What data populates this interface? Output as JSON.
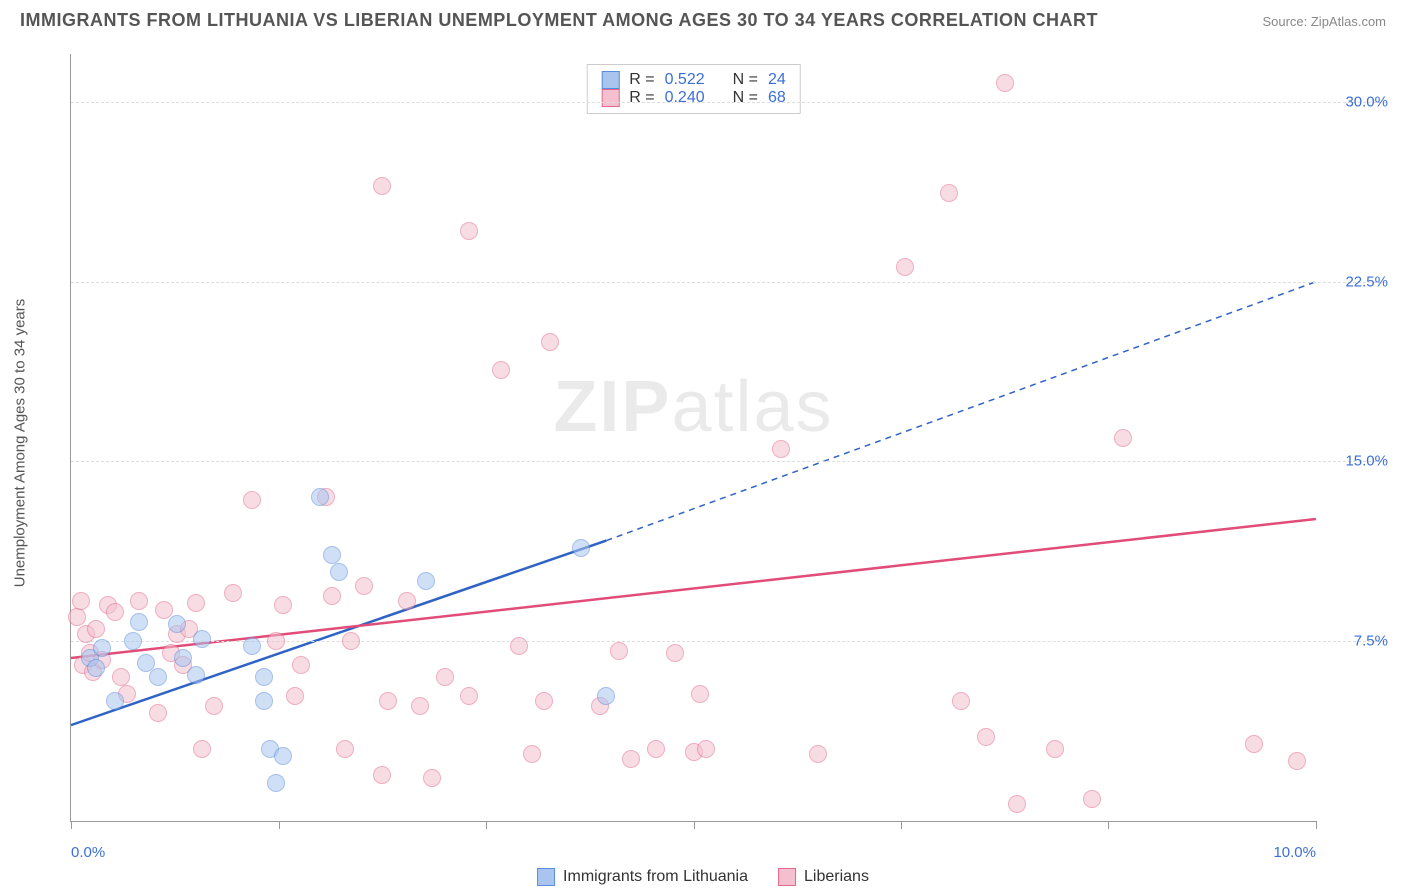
{
  "title": "IMMIGRANTS FROM LITHUANIA VS LIBERIAN UNEMPLOYMENT AMONG AGES 30 TO 34 YEARS CORRELATION CHART",
  "source_label": "Source: ZipAtlas.com",
  "ylabel": "Unemployment Among Ages 30 to 34 years",
  "watermark_bold": "ZIP",
  "watermark_light": "atlas",
  "chart": {
    "type": "scatter",
    "background_color": "#ffffff",
    "grid_color": "#dddddd",
    "axis_color": "#999999",
    "tick_label_color": "#3b6fd8",
    "tick_fontsize": 15,
    "xlim": [
      0,
      10
    ],
    "ylim": [
      0,
      32
    ],
    "xtick_labels": [
      "0.0%",
      "10.0%"
    ],
    "xtick_positions": [
      0,
      10
    ],
    "xtick_minor": [
      0,
      1.67,
      3.33,
      5.0,
      6.67,
      8.33,
      10.0
    ],
    "ytick_labels": [
      "7.5%",
      "15.0%",
      "22.5%",
      "30.0%"
    ],
    "ytick_positions": [
      7.5,
      15.0,
      22.5,
      30.0
    ],
    "marker_radius": 9,
    "marker_opacity": 0.55,
    "series": [
      {
        "name": "Immigrants from Lithuania",
        "fill": "#a9c5ef",
        "stroke": "#5a8ddb",
        "line_color": "#2f63c4",
        "R": "0.522",
        "N": "24",
        "trend": {
          "x1": 0,
          "y1": 4.0,
          "x2": 4.3,
          "y2": 11.7,
          "x3": 10.0,
          "y3": 22.5
        },
        "points": [
          [
            0.15,
            6.8
          ],
          [
            0.2,
            6.4
          ],
          [
            0.25,
            7.2
          ],
          [
            0.35,
            5.0
          ],
          [
            0.5,
            7.5
          ],
          [
            0.55,
            8.3
          ],
          [
            0.6,
            6.6
          ],
          [
            0.7,
            6.0
          ],
          [
            0.85,
            8.2
          ],
          [
            0.9,
            6.8
          ],
          [
            1.0,
            6.1
          ],
          [
            1.05,
            7.6
          ],
          [
            1.45,
            7.3
          ],
          [
            1.55,
            6.0
          ],
          [
            1.55,
            5.0
          ],
          [
            1.6,
            3.0
          ],
          [
            1.65,
            1.6
          ],
          [
            1.7,
            2.7
          ],
          [
            2.0,
            13.5
          ],
          [
            2.1,
            11.1
          ],
          [
            2.15,
            10.4
          ],
          [
            2.85,
            10.0
          ],
          [
            4.1,
            11.4
          ],
          [
            4.3,
            5.2
          ]
        ]
      },
      {
        "name": "Liberians",
        "fill": "#f4c0cf",
        "stroke": "#e16b8e",
        "line_color": "#e14d78",
        "R": "0.240",
        "N": "68",
        "trend": {
          "x1": 0,
          "y1": 6.8,
          "x2": 10.0,
          "y2": 12.6
        },
        "points": [
          [
            0.05,
            8.5
          ],
          [
            0.08,
            9.2
          ],
          [
            0.1,
            6.5
          ],
          [
            0.12,
            7.8
          ],
          [
            0.15,
            7.0
          ],
          [
            0.18,
            6.2
          ],
          [
            0.2,
            8.0
          ],
          [
            0.25,
            6.7
          ],
          [
            0.3,
            9.0
          ],
          [
            0.35,
            8.7
          ],
          [
            0.4,
            6.0
          ],
          [
            0.45,
            5.3
          ],
          [
            0.55,
            9.2
          ],
          [
            0.7,
            4.5
          ],
          [
            0.75,
            8.8
          ],
          [
            0.8,
            7.0
          ],
          [
            0.85,
            7.8
          ],
          [
            0.9,
            6.5
          ],
          [
            0.95,
            8.0
          ],
          [
            1.0,
            9.1
          ],
          [
            1.05,
            3.0
          ],
          [
            1.15,
            4.8
          ],
          [
            1.3,
            9.5
          ],
          [
            1.45,
            13.4
          ],
          [
            1.65,
            7.5
          ],
          [
            1.7,
            9.0
          ],
          [
            1.8,
            5.2
          ],
          [
            1.85,
            6.5
          ],
          [
            2.05,
            13.5
          ],
          [
            2.1,
            9.4
          ],
          [
            2.2,
            3.0
          ],
          [
            2.25,
            7.5
          ],
          [
            2.35,
            9.8
          ],
          [
            2.5,
            1.9
          ],
          [
            2.5,
            26.5
          ],
          [
            2.55,
            5.0
          ],
          [
            2.7,
            9.2
          ],
          [
            2.8,
            4.8
          ],
          [
            2.9,
            1.8
          ],
          [
            3.0,
            6.0
          ],
          [
            3.2,
            5.2
          ],
          [
            3.2,
            24.6
          ],
          [
            3.45,
            18.8
          ],
          [
            3.6,
            7.3
          ],
          [
            3.7,
            2.8
          ],
          [
            3.8,
            5.0
          ],
          [
            3.85,
            20.0
          ],
          [
            4.25,
            4.8
          ],
          [
            4.4,
            7.1
          ],
          [
            4.5,
            2.6
          ],
          [
            4.7,
            3.0
          ],
          [
            4.85,
            7.0
          ],
          [
            5.0,
            2.9
          ],
          [
            5.05,
            5.3
          ],
          [
            5.1,
            3.0
          ],
          [
            5.7,
            15.5
          ],
          [
            6.7,
            23.1
          ],
          [
            7.05,
            26.2
          ],
          [
            7.15,
            5.0
          ],
          [
            7.35,
            3.5
          ],
          [
            7.5,
            30.8
          ],
          [
            7.6,
            0.7
          ],
          [
            7.9,
            3.0
          ],
          [
            8.2,
            0.9
          ],
          [
            8.45,
            16.0
          ],
          [
            9.85,
            2.5
          ],
          [
            9.5,
            3.2
          ],
          [
            6.0,
            2.8
          ]
        ]
      }
    ]
  },
  "legend_bottom": [
    {
      "label": "Immigrants from Lithuania",
      "fill": "#a9c5ef",
      "stroke": "#5a8ddb"
    },
    {
      "label": "Liberians",
      "fill": "#f4c0cf",
      "stroke": "#e16b8e"
    }
  ]
}
